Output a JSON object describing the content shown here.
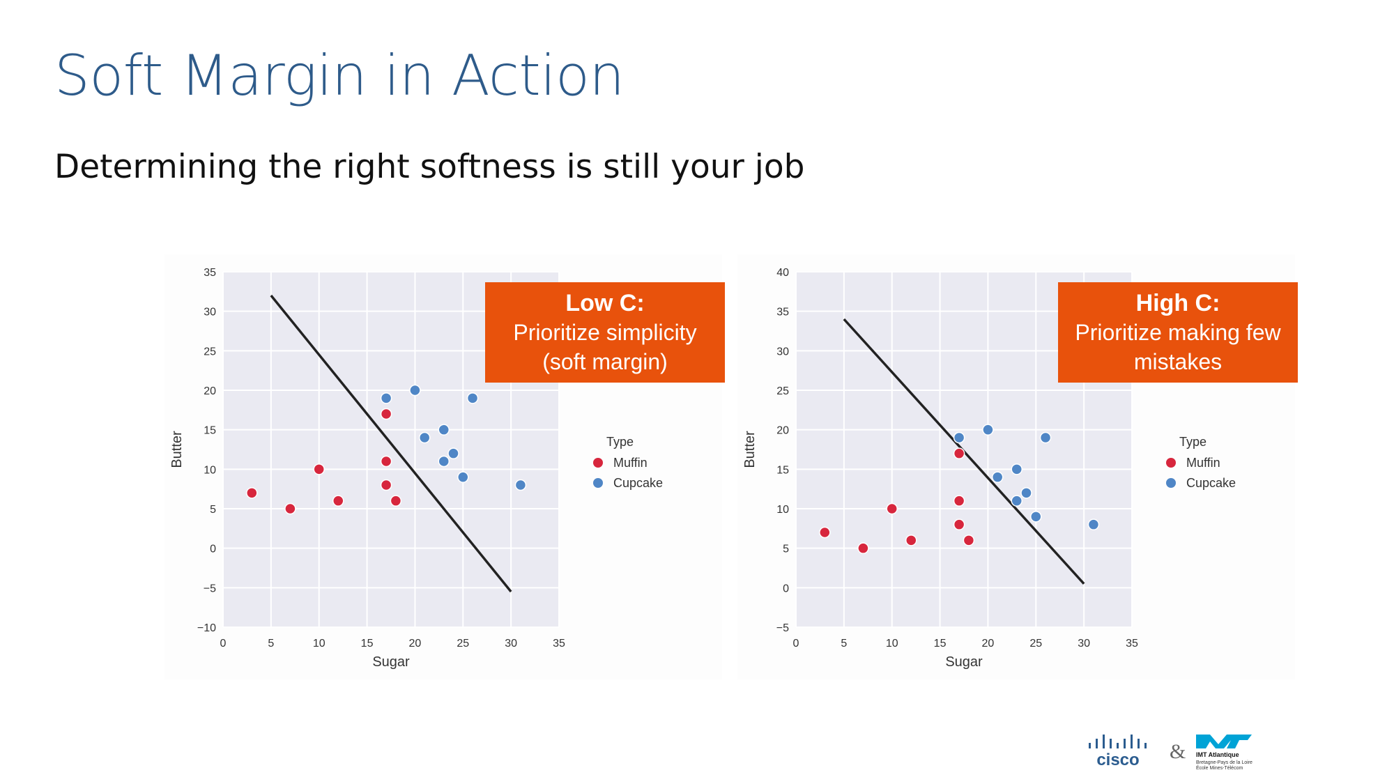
{
  "slide": {
    "title": "Soft Margin in Action",
    "subtitle": "Determining the right softness is still your job"
  },
  "callouts": [
    {
      "heading": "Low C:",
      "body": "Prioritize simplicity (soft margin)"
    },
    {
      "heading": "High C:",
      "body": "Prioritize making few mistakes"
    }
  ],
  "footer": {
    "logo_left": "cisco",
    "ampersand": "&",
    "logo_right": "IMT Atlantique",
    "logo_right_line2": "Bretagne-Pays de la Loire",
    "logo_right_line3": "École Mines-Télécom"
  },
  "colors": {
    "title": "#2e5b8a",
    "callout": "#e8520c",
    "muffin": "#d7263d",
    "cupcake": "#4f86c6",
    "plot_bg": "#eaeaf2",
    "line": "#222222"
  },
  "chart_data": [
    {
      "type": "scatter",
      "xlabel": "Sugar",
      "ylabel": "Butter",
      "xlim": [
        0,
        35
      ],
      "ylim": [
        -10,
        35
      ],
      "xticks": [
        0,
        5,
        10,
        15,
        20,
        25,
        30,
        35
      ],
      "yticks": [
        -10,
        -5,
        0,
        5,
        10,
        15,
        20,
        25,
        30,
        35
      ],
      "grid": true,
      "legend": {
        "title": "Type",
        "placement": "right",
        "entries": [
          "Muffin",
          "Cupcake"
        ]
      },
      "series": [
        {
          "name": "Muffin",
          "color": "#d7263d",
          "points": [
            [
              3,
              7
            ],
            [
              7,
              5
            ],
            [
              10,
              10
            ],
            [
              12,
              6
            ],
            [
              17,
              17
            ],
            [
              17,
              11
            ],
            [
              17,
              8
            ],
            [
              18,
              6
            ]
          ]
        },
        {
          "name": "Cupcake",
          "color": "#4f86c6",
          "points": [
            [
              17,
              19
            ],
            [
              20,
              20
            ],
            [
              21,
              14
            ],
            [
              23,
              15
            ],
            [
              23,
              11
            ],
            [
              24,
              12
            ],
            [
              25,
              9
            ],
            [
              26,
              19
            ],
            [
              31,
              8
            ]
          ]
        }
      ],
      "decision_line": [
        [
          5,
          32
        ],
        [
          30,
          -5.5
        ]
      ]
    },
    {
      "type": "scatter",
      "xlabel": "Sugar",
      "ylabel": "Butter",
      "xlim": [
        0,
        35
      ],
      "ylim": [
        -5,
        40
      ],
      "xticks": [
        0,
        5,
        10,
        15,
        20,
        25,
        30,
        35
      ],
      "yticks": [
        -5,
        0,
        5,
        10,
        15,
        20,
        25,
        30,
        35,
        40
      ],
      "grid": true,
      "legend": {
        "title": "Type",
        "placement": "right",
        "entries": [
          "Muffin",
          "Cupcake"
        ]
      },
      "series": [
        {
          "name": "Muffin",
          "color": "#d7263d",
          "points": [
            [
              3,
              7
            ],
            [
              7,
              5
            ],
            [
              10,
              10
            ],
            [
              12,
              6
            ],
            [
              17,
              17
            ],
            [
              17,
              11
            ],
            [
              17,
              8
            ],
            [
              18,
              6
            ]
          ]
        },
        {
          "name": "Cupcake",
          "color": "#4f86c6",
          "points": [
            [
              17,
              19
            ],
            [
              20,
              20
            ],
            [
              21,
              14
            ],
            [
              23,
              15
            ],
            [
              23,
              11
            ],
            [
              24,
              12
            ],
            [
              25,
              9
            ],
            [
              26,
              19
            ],
            [
              31,
              8
            ]
          ]
        }
      ],
      "decision_line": [
        [
          5,
          34
        ],
        [
          30,
          0.5
        ]
      ]
    }
  ]
}
